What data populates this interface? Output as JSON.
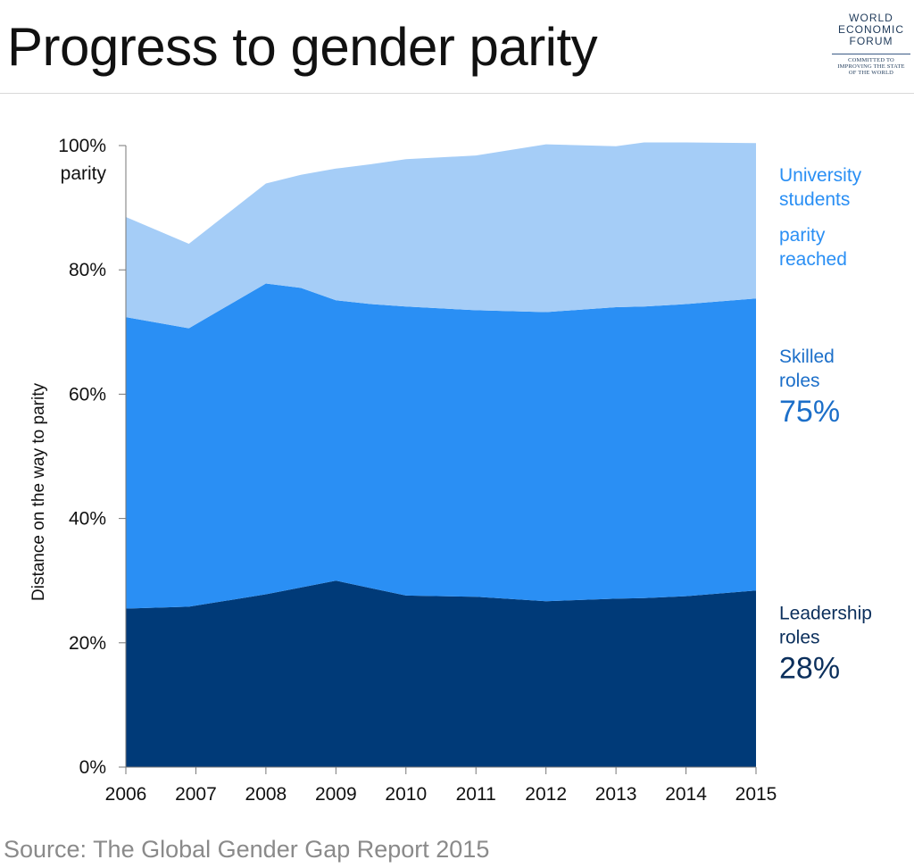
{
  "header": {
    "title": "Progress to gender parity",
    "logo": {
      "org_lines": [
        "WORLD",
        "ECONOMIC",
        "FORUM"
      ],
      "motto": "COMMITTED TO\nIMPROVING THE STATE\nOF THE WORLD"
    }
  },
  "chart_data": {
    "type": "area",
    "stacked": true,
    "title": "Progress to gender parity",
    "xlabel": "",
    "ylabel": "Distance on the way to parity",
    "x": [
      2006,
      2006.9,
      2008,
      2008.5,
      2009,
      2009.5,
      2010,
      2011,
      2012,
      2013,
      2013.4,
      2014,
      2015
    ],
    "x_ticks": [
      "2006",
      "2007",
      "2008",
      "2009",
      "2010",
      "2011",
      "2012",
      "2013",
      "2014",
      "2015"
    ],
    "y_ticks": [
      "0%",
      "20%",
      "40%",
      "60%",
      "80%",
      "100%"
    ],
    "y_extra_label": "parity",
    "ylim": [
      0,
      100
    ],
    "series": [
      {
        "name": "Leadership roles",
        "color": "#003a78",
        "values": [
          25.5,
          25.8,
          27.8,
          28.9,
          30,
          28.8,
          27.6,
          27.4,
          26.7,
          27.1,
          27.2,
          27.5,
          28.4
        ]
      },
      {
        "name": "Skilled roles",
        "color": "#2a8ff4",
        "values": [
          46.9,
          44.8,
          50,
          48.2,
          45.1,
          45.7,
          46.5,
          46.1,
          46.5,
          46.9,
          46.9,
          47,
          47
        ]
      },
      {
        "name": "University students",
        "color": "#a5cdf7",
        "values": [
          16.1,
          13.6,
          16.1,
          18.2,
          21.2,
          22.5,
          23.7,
          24.9,
          27,
          25.9,
          26.4,
          26,
          25
        ]
      }
    ],
    "annotations": [
      {
        "series": "University students",
        "lines": [
          "University",
          "students"
        ],
        "color": "#2a8ff4"
      },
      {
        "series": "University students",
        "lines": [
          "parity",
          "reached"
        ],
        "color": "#2a8ff4"
      },
      {
        "series": "Skilled roles",
        "lines": [
          "Skilled",
          "roles"
        ],
        "value": "75%",
        "color": "#1c6fc9"
      },
      {
        "series": "Leadership roles",
        "lines": [
          "Leadership",
          "roles"
        ],
        "value": "28%",
        "color": "#0b2f5c"
      }
    ]
  },
  "footer": {
    "source": "Source: The Global Gender Gap Report 2015"
  }
}
